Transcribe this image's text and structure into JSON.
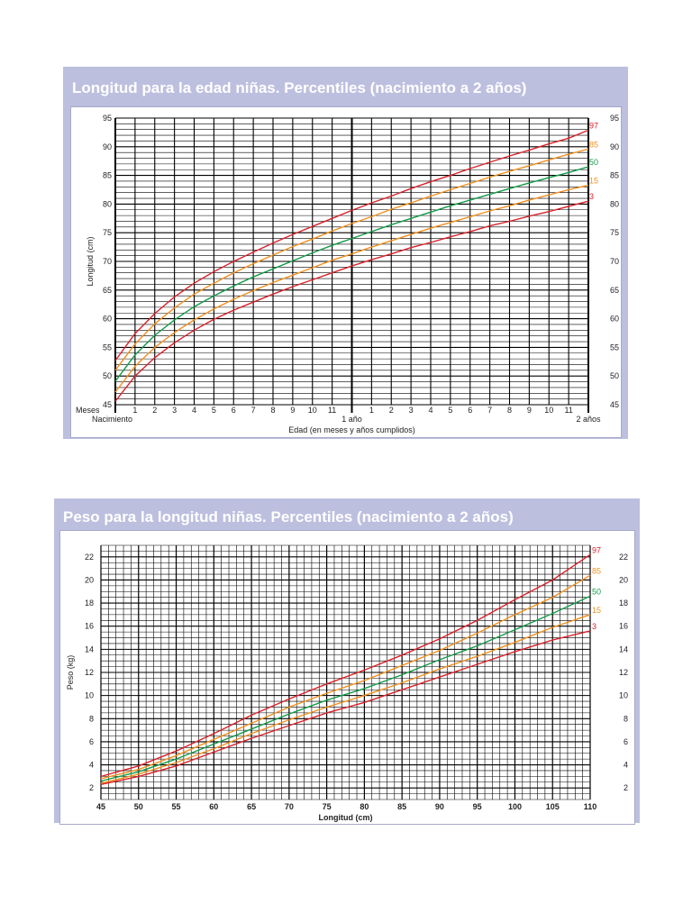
{
  "charts": [
    {
      "title": "Longitud para la edad niñas. Percentiles (nacimiento a 2 años)",
      "chart_data": {
        "type": "line",
        "title": "Longitud para la edad niñas. Percentiles (nacimiento a 2 años)",
        "xlabel": "Edad (en meses y años cumplidos)",
        "ylabel": "Longitud (cm)",
        "xlim": [
          0,
          24
        ],
        "ylim": [
          45,
          95
        ],
        "grid": true,
        "y_ticks": [
          45,
          50,
          55,
          60,
          65,
          70,
          75,
          80,
          85,
          90,
          95
        ],
        "x_tick_month_labels": [
          "1",
          "2",
          "3",
          "4",
          "5",
          "6",
          "7",
          "8",
          "9",
          "10",
          "11",
          "1",
          "2",
          "3",
          "4",
          "5",
          "6",
          "7",
          "8",
          "9",
          "10",
          "11"
        ],
        "x_axis_row_label": "Meses",
        "x_milestones": [
          {
            "x": 0,
            "label": "Nacimiento"
          },
          {
            "x": 12,
            "label": "1 año"
          },
          {
            "x": 24,
            "label": "2 años"
          }
        ],
        "x": [
          0,
          1,
          2,
          3,
          4,
          5,
          6,
          7,
          8,
          9,
          10,
          11,
          12,
          13,
          14,
          15,
          16,
          17,
          18,
          19,
          20,
          21,
          22,
          23,
          24
        ],
        "series": [
          {
            "name": "97",
            "color": "#d9212b",
            "values": [
              52.7,
              57.4,
              60.9,
              63.8,
              66.2,
              68.2,
              70.0,
              71.6,
              73.2,
              74.7,
              76.1,
              77.5,
              78.9,
              80.2,
              81.4,
              82.7,
              83.9,
              85.0,
              86.2,
              87.3,
              88.4,
              89.4,
              90.5,
              91.5,
              92.9
            ]
          },
          {
            "name": "85",
            "color": "#f0901e",
            "values": [
              51.0,
              55.6,
              59.1,
              61.9,
              64.3,
              66.2,
              68.0,
              69.6,
              71.1,
              72.6,
              73.9,
              75.3,
              76.6,
              77.8,
              79.1,
              80.2,
              81.4,
              82.5,
              83.6,
              84.7,
              85.7,
              86.7,
              87.7,
              88.7,
              89.6
            ]
          },
          {
            "name": "50",
            "color": "#139a49",
            "values": [
              49.1,
              53.7,
              57.1,
              59.8,
              62.1,
              64.0,
              65.7,
              67.3,
              68.7,
              70.1,
              71.5,
              72.8,
              74.0,
              75.2,
              76.4,
              77.5,
              78.6,
              79.7,
              80.7,
              81.7,
              82.7,
              83.7,
              84.6,
              85.5,
              86.5
            ]
          },
          {
            "name": "15",
            "color": "#f0901e",
            "values": [
              47.2,
              51.7,
              55.0,
              57.6,
              59.8,
              61.7,
              63.4,
              64.9,
              66.3,
              67.6,
              68.9,
              70.2,
              71.3,
              72.5,
              73.6,
              74.7,
              75.8,
              76.8,
              77.8,
              78.8,
              79.7,
              80.7,
              81.6,
              82.5,
              83.3
            ]
          },
          {
            "name": "3",
            "color": "#d9212b",
            "values": [
              45.6,
              50.0,
              53.2,
              55.8,
              58.0,
              59.9,
              61.5,
              62.9,
              64.3,
              65.6,
              66.8,
              68.0,
              69.2,
              70.3,
              71.3,
              72.4,
              73.3,
              74.3,
              75.2,
              76.2,
              77.0,
              77.9,
              78.7,
              79.6,
              80.5
            ]
          }
        ]
      }
    },
    {
      "title": "Peso para la longitud niñas. Percentiles (nacimiento a 2 años)",
      "chart_data": {
        "type": "line",
        "title": "Peso para la longitud niñas. Percentiles (nacimiento a 2 años)",
        "xlabel": "Longitud (cm)",
        "ylabel": "Peso (kg)",
        "xlim": [
          45,
          110
        ],
        "ylim": [
          1,
          23
        ],
        "grid": true,
        "x_ticks": [
          45,
          50,
          55,
          60,
          65,
          70,
          75,
          80,
          85,
          90,
          95,
          100,
          105,
          110
        ],
        "y_ticks": [
          2,
          4,
          6,
          8,
          10,
          12,
          14,
          16,
          18,
          20,
          22
        ],
        "x": [
          45,
          50,
          55,
          60,
          65,
          70,
          75,
          80,
          85,
          90,
          95,
          100,
          105,
          110
        ],
        "series": [
          {
            "name": "97",
            "color": "#d9212b",
            "values": [
              3.0,
              3.9,
              5.2,
              6.7,
              8.3,
              9.7,
              11.0,
              12.2,
              13.5,
              14.9,
              16.5,
              18.3,
              20.0,
              22.2
            ]
          },
          {
            "name": "85",
            "color": "#f0901e",
            "values": [
              2.8,
              3.6,
              4.8,
              6.2,
              7.6,
              9.0,
              10.2,
              11.3,
              12.6,
              13.9,
              15.4,
              17.0,
              18.5,
              20.4
            ]
          },
          {
            "name": "50",
            "color": "#139a49",
            "values": [
              2.6,
              3.4,
              4.5,
              5.8,
              7.1,
              8.4,
              9.6,
              10.6,
              11.8,
              13.1,
              14.3,
              15.7,
              17.1,
              18.6
            ]
          },
          {
            "name": "15",
            "color": "#f0901e",
            "values": [
              2.4,
              3.2,
              4.2,
              5.4,
              6.7,
              7.9,
              9.0,
              10.0,
              11.1,
              12.3,
              13.4,
              14.6,
              15.9,
              17.0
            ]
          },
          {
            "name": "3",
            "color": "#d9212b",
            "values": [
              2.3,
              3.0,
              3.9,
              5.1,
              6.3,
              7.4,
              8.5,
              9.4,
              10.5,
              11.6,
              12.7,
              13.8,
              14.8,
              15.6
            ]
          }
        ]
      }
    }
  ]
}
